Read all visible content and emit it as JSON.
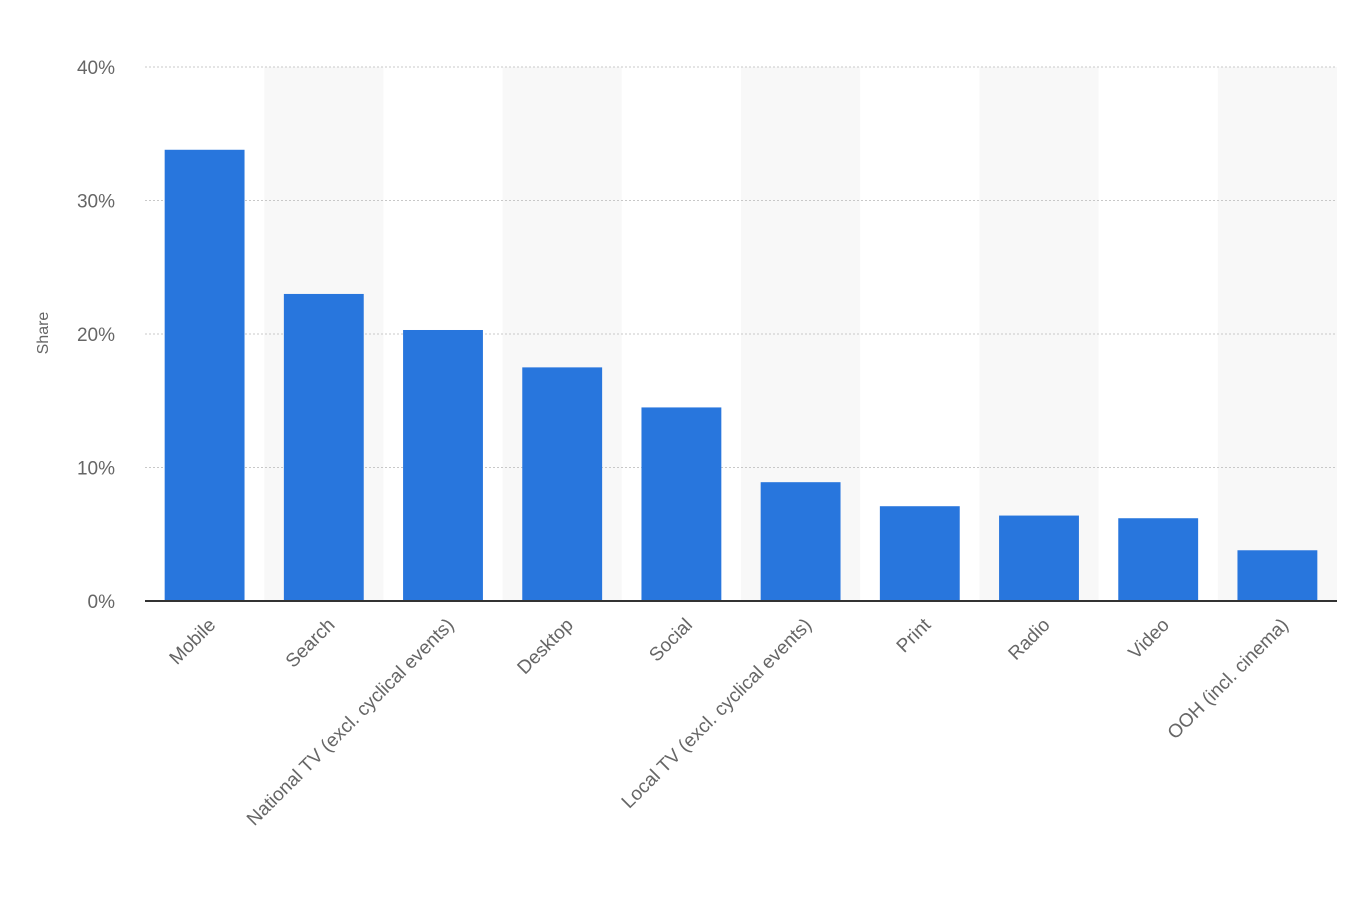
{
  "chart_data": {
    "type": "bar",
    "ylabel": "Share",
    "ylim": [
      0,
      40
    ],
    "yticks": [
      0,
      10,
      20,
      30,
      40
    ],
    "tick_suffix": "%",
    "grid": true,
    "legend": "none",
    "bar_color": "#2876dd",
    "band_color": "#f8f8f8",
    "categories": [
      "Mobile",
      "Search",
      "National TV (excl. cyclical events)",
      "Desktop",
      "Social",
      "Local TV (excl. cyclical events)",
      "Print",
      "Radio",
      "Video",
      "OOH (incl. cinema)"
    ],
    "values": [
      33.8,
      23.0,
      20.3,
      17.5,
      14.5,
      8.9,
      7.1,
      6.4,
      6.2,
      3.8
    ]
  }
}
